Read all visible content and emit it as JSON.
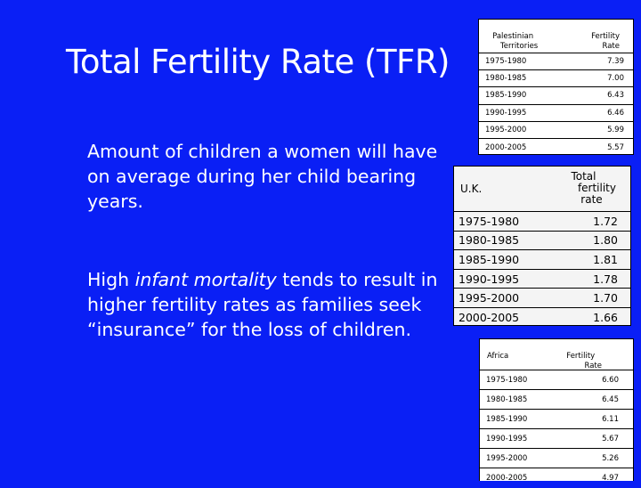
{
  "slide": {
    "title": "Total Fertility Rate (TFR)",
    "paragraph1": "Amount of children a women will have on average during her child bearing years.",
    "paragraph2": {
      "before": "High ",
      "italic": "infant mortality",
      "after": " tends to result in higher fertility rates as families seek “insurance” for the loss of children."
    }
  },
  "tables": {
    "palestinian": {
      "header_left_line1": "Palestinian",
      "header_left_line2": "Territories",
      "header_right_line1": "Fertility",
      "header_right_line2": "Rate",
      "rows": [
        {
          "period": "1975-1980",
          "value": "7.39"
        },
        {
          "period": "1980-1985",
          "value": "7.00"
        },
        {
          "period": "1985-1990",
          "value": "6.43"
        },
        {
          "period": "1990-1995",
          "value": "6.46"
        },
        {
          "period": "1995-2000",
          "value": "5.99"
        },
        {
          "period": "2000-2005",
          "value": "5.57"
        }
      ]
    },
    "uk": {
      "header_left": "U.K.",
      "header_right_line1": "Total",
      "header_right_line2": "fertility",
      "header_right_line3": "rate",
      "rows": [
        {
          "period": "1975-1980",
          "value": "1.72"
        },
        {
          "period": "1980-1985",
          "value": "1.80"
        },
        {
          "period": "1985-1990",
          "value": "1.81"
        },
        {
          "period": "1990-1995",
          "value": "1.78"
        },
        {
          "period": "1995-2000",
          "value": "1.70"
        },
        {
          "period": "2000-2005",
          "value": "1.66"
        }
      ]
    },
    "africa": {
      "header_left": "Africa",
      "header_right_line1": "Fertility",
      "header_right_line2": "Rate",
      "rows": [
        {
          "period": "1975-1980",
          "value": "6.60"
        },
        {
          "period": "1980-1985",
          "value": "6.45"
        },
        {
          "period": "1985-1990",
          "value": "6.11"
        },
        {
          "period": "1990-1995",
          "value": "5.67"
        },
        {
          "period": "1995-2000",
          "value": "5.26"
        },
        {
          "period": "2000-2005",
          "value": "4.97"
        }
      ]
    }
  }
}
